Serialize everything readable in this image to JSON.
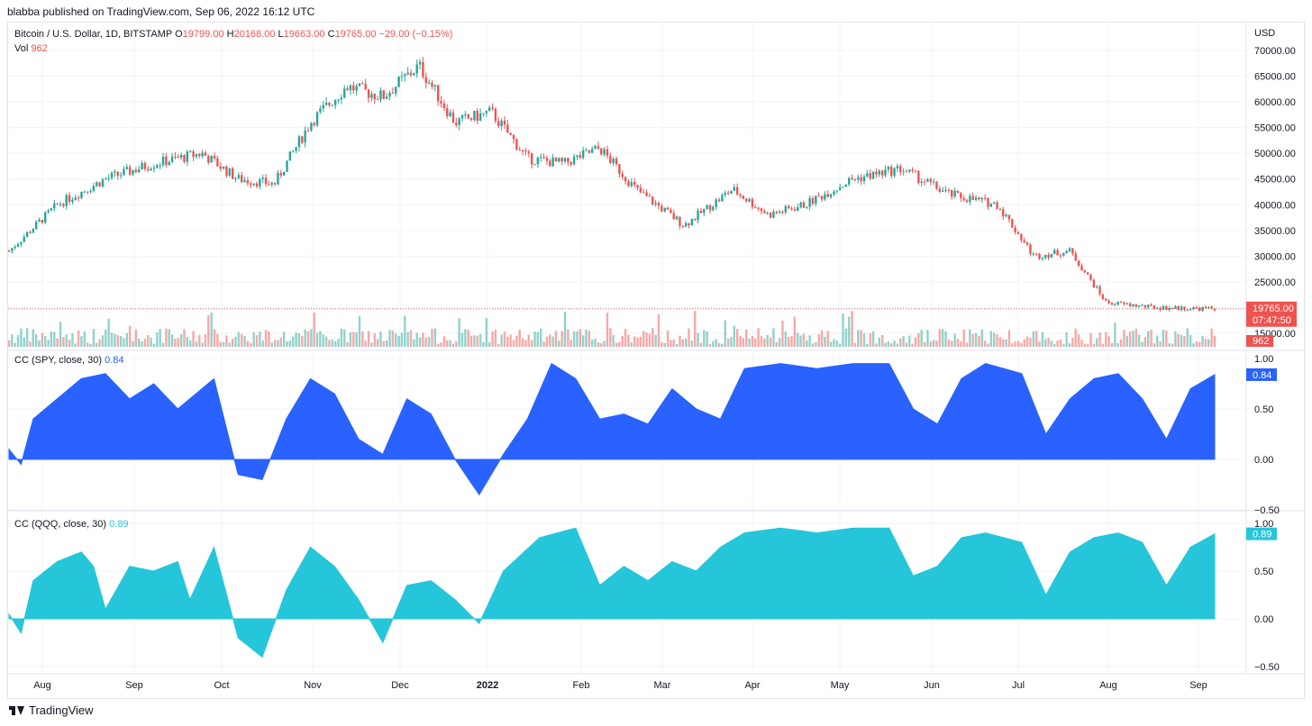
{
  "header": {
    "published": "blabba published on TradingView.com, Sep 06, 2022 16:12 UTC"
  },
  "main_legend": {
    "symbol": "Bitcoin / U.S. Dollar, 1D, BITSTAMP",
    "o_label": "O",
    "o_value": "19799.00",
    "h_label": "H",
    "h_value": "20168.00",
    "l_label": "L",
    "l_value": "19663.00",
    "c_label": "C",
    "c_value": "19765.00",
    "change": "−29.00 (−0.15%)"
  },
  "vol_legend": {
    "label": "Vol",
    "value": "962"
  },
  "spy_legend": {
    "label": "CC (SPY, close, 30)",
    "value": "0.84"
  },
  "qqq_legend": {
    "label": "CC (QQQ, close, 30)",
    "value": "0.89"
  },
  "price_axis": {
    "currency": "USD",
    "ticks": [
      "70000.00",
      "65000.00",
      "60000.00",
      "55000.00",
      "50000.00",
      "45000.00",
      "40000.00",
      "35000.00",
      "30000.00",
      "25000.00",
      "15000.00"
    ],
    "last_price": "19765.00",
    "countdown": "07:47:50",
    "last_volume": "962"
  },
  "spy_axis": {
    "ticks": [
      "1.00",
      "0.50",
      "0.00",
      "−0.50"
    ],
    "last": "0.84"
  },
  "qqq_axis": {
    "ticks": [
      "1.00",
      "0.50",
      "0.00",
      "−0.50"
    ],
    "last": "0.89"
  },
  "time_axis": [
    "Aug",
    "Sep",
    "Oct",
    "Nov",
    "Dec",
    "2022",
    "Feb",
    "Mar",
    "Apr",
    "May",
    "Jun",
    "Jul",
    "Aug",
    "Sep"
  ],
  "footer": {
    "brand": "TradingView"
  },
  "colors": {
    "up": "#26a69a",
    "down": "#ef5350",
    "spy": "#2962ff",
    "qqq": "#26c6da",
    "grid": "#f0f3fa"
  },
  "chart_data": [
    {
      "type": "candlestick",
      "title": "Bitcoin / U.S. Dollar, 1D, BITSTAMP",
      "ylabel": "USD",
      "ylim": [
        15000,
        70000
      ],
      "x": [
        "Jul 2021",
        "Aug 2021",
        "Sep 2021",
        "Oct 2021",
        "Nov 2021",
        "Dec 2021",
        "Jan 2022",
        "Feb 2022",
        "Mar 2022",
        "Apr 2022",
        "May 2022",
        "Jun 2022",
        "Jul 2022",
        "Aug 2022",
        "Sep 2022"
      ],
      "close_path": [
        [
          0,
          31000
        ],
        [
          0.04,
          40000
        ],
        [
          0.08,
          45000
        ],
        [
          0.12,
          48000
        ],
        [
          0.16,
          50000
        ],
        [
          0.19,
          45000
        ],
        [
          0.22,
          44000
        ],
        [
          0.25,
          56000
        ],
        [
          0.28,
          63000
        ],
        [
          0.31,
          61000
        ],
        [
          0.34,
          67000
        ],
        [
          0.37,
          56000
        ],
        [
          0.4,
          58000
        ],
        [
          0.43,
          49000
        ],
        [
          0.46,
          48000
        ],
        [
          0.49,
          51000
        ],
        [
          0.52,
          43000
        ],
        [
          0.56,
          36000
        ],
        [
          0.6,
          43000
        ],
        [
          0.63,
          38000
        ],
        [
          0.66,
          40000
        ],
        [
          0.7,
          45000
        ],
        [
          0.74,
          47000
        ],
        [
          0.78,
          42000
        ],
        [
          0.82,
          40000
        ],
        [
          0.85,
          30000
        ],
        [
          0.88,
          31000
        ],
        [
          0.91,
          21000
        ],
        [
          0.95,
          20000
        ],
        [
          1.0,
          19765
        ]
      ],
      "last": {
        "open": 19799,
        "high": 20168,
        "low": 19663,
        "close": 19765
      }
    },
    {
      "type": "bar",
      "title": "Vol",
      "last": 962
    },
    {
      "type": "area",
      "title": "CC (SPY, close, 30)",
      "ylim": [
        -0.5,
        1.0
      ],
      "profile": [
        [
          0,
          0.1
        ],
        [
          0.01,
          -0.05
        ],
        [
          0.02,
          0.4
        ],
        [
          0.04,
          0.6
        ],
        [
          0.06,
          0.8
        ],
        [
          0.08,
          0.85
        ],
        [
          0.1,
          0.6
        ],
        [
          0.12,
          0.75
        ],
        [
          0.14,
          0.5
        ],
        [
          0.15,
          0.6
        ],
        [
          0.17,
          0.8
        ],
        [
          0.19,
          -0.15
        ],
        [
          0.21,
          -0.2
        ],
        [
          0.23,
          0.4
        ],
        [
          0.25,
          0.8
        ],
        [
          0.27,
          0.65
        ],
        [
          0.29,
          0.2
        ],
        [
          0.31,
          0.05
        ],
        [
          0.33,
          0.6
        ],
        [
          0.35,
          0.45
        ],
        [
          0.37,
          0.0
        ],
        [
          0.39,
          -0.35
        ],
        [
          0.41,
          0.05
        ],
        [
          0.43,
          0.4
        ],
        [
          0.45,
          0.95
        ],
        [
          0.47,
          0.8
        ],
        [
          0.49,
          0.4
        ],
        [
          0.51,
          0.45
        ],
        [
          0.53,
          0.35
        ],
        [
          0.55,
          0.7
        ],
        [
          0.57,
          0.5
        ],
        [
          0.59,
          0.4
        ],
        [
          0.61,
          0.9
        ],
        [
          0.64,
          0.95
        ],
        [
          0.67,
          0.9
        ],
        [
          0.7,
          0.95
        ],
        [
          0.73,
          0.95
        ],
        [
          0.75,
          0.5
        ],
        [
          0.77,
          0.35
        ],
        [
          0.79,
          0.8
        ],
        [
          0.81,
          0.95
        ],
        [
          0.84,
          0.85
        ],
        [
          0.86,
          0.25
        ],
        [
          0.88,
          0.6
        ],
        [
          0.9,
          0.8
        ],
        [
          0.92,
          0.85
        ],
        [
          0.94,
          0.6
        ],
        [
          0.96,
          0.2
        ],
        [
          0.98,
          0.7
        ],
        [
          1.0,
          0.84
        ]
      ],
      "last": 0.84
    },
    {
      "type": "area",
      "title": "CC (QQQ, close, 30)",
      "ylim": [
        -0.5,
        1.0
      ],
      "profile": [
        [
          0,
          0.05
        ],
        [
          0.01,
          -0.15
        ],
        [
          0.02,
          0.4
        ],
        [
          0.04,
          0.6
        ],
        [
          0.06,
          0.7
        ],
        [
          0.07,
          0.55
        ],
        [
          0.08,
          0.1
        ],
        [
          0.1,
          0.55
        ],
        [
          0.12,
          0.5
        ],
        [
          0.14,
          0.6
        ],
        [
          0.15,
          0.2
        ],
        [
          0.17,
          0.75
        ],
        [
          0.19,
          -0.2
        ],
        [
          0.21,
          -0.4
        ],
        [
          0.23,
          0.3
        ],
        [
          0.25,
          0.75
        ],
        [
          0.27,
          0.55
        ],
        [
          0.29,
          0.2
        ],
        [
          0.31,
          -0.25
        ],
        [
          0.33,
          0.35
        ],
        [
          0.35,
          0.4
        ],
        [
          0.37,
          0.2
        ],
        [
          0.39,
          -0.05
        ],
        [
          0.41,
          0.5
        ],
        [
          0.44,
          0.85
        ],
        [
          0.47,
          0.95
        ],
        [
          0.49,
          0.35
        ],
        [
          0.51,
          0.55
        ],
        [
          0.53,
          0.4
        ],
        [
          0.55,
          0.6
        ],
        [
          0.57,
          0.5
        ],
        [
          0.59,
          0.75
        ],
        [
          0.61,
          0.9
        ],
        [
          0.64,
          0.95
        ],
        [
          0.67,
          0.9
        ],
        [
          0.7,
          0.95
        ],
        [
          0.73,
          0.95
        ],
        [
          0.75,
          0.45
        ],
        [
          0.77,
          0.55
        ],
        [
          0.79,
          0.85
        ],
        [
          0.81,
          0.9
        ],
        [
          0.84,
          0.8
        ],
        [
          0.86,
          0.25
        ],
        [
          0.88,
          0.7
        ],
        [
          0.9,
          0.85
        ],
        [
          0.92,
          0.9
        ],
        [
          0.94,
          0.8
        ],
        [
          0.96,
          0.35
        ],
        [
          0.98,
          0.75
        ],
        [
          1.0,
          0.89
        ]
      ],
      "last": 0.89
    }
  ]
}
